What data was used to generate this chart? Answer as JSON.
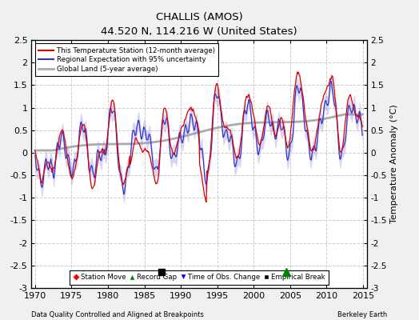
{
  "title": "CHALLIS (AMOS)",
  "subtitle": "44.520 N, 114.216 W (United States)",
  "xlabel_left": "Data Quality Controlled and Aligned at Breakpoints",
  "xlabel_right": "Berkeley Earth",
  "ylabel": "Temperature Anomaly (°C)",
  "xlim": [
    1969.5,
    2015.5
  ],
  "ylim": [
    -3.0,
    2.5
  ],
  "yticks": [
    -3,
    -2.5,
    -2,
    -1.5,
    -1,
    -0.5,
    0,
    0.5,
    1,
    1.5,
    2,
    2.5
  ],
  "xticks": [
    1970,
    1975,
    1980,
    1985,
    1990,
    1995,
    2000,
    2005,
    2010,
    2015
  ],
  "background_color": "#f0f0f0",
  "plot_bg_color": "#ffffff",
  "regional_color": "#3333cc",
  "regional_fill_color": "#9999dd",
  "station_color": "#dd0000",
  "global_color": "#aaaaaa",
  "empirical_break_x": 1987.3,
  "empirical_break_y": -2.65,
  "record_gap_x": 2004.5,
  "record_gap_y": -2.65,
  "grid_color": "#cccccc",
  "grid_linestyle": "--"
}
